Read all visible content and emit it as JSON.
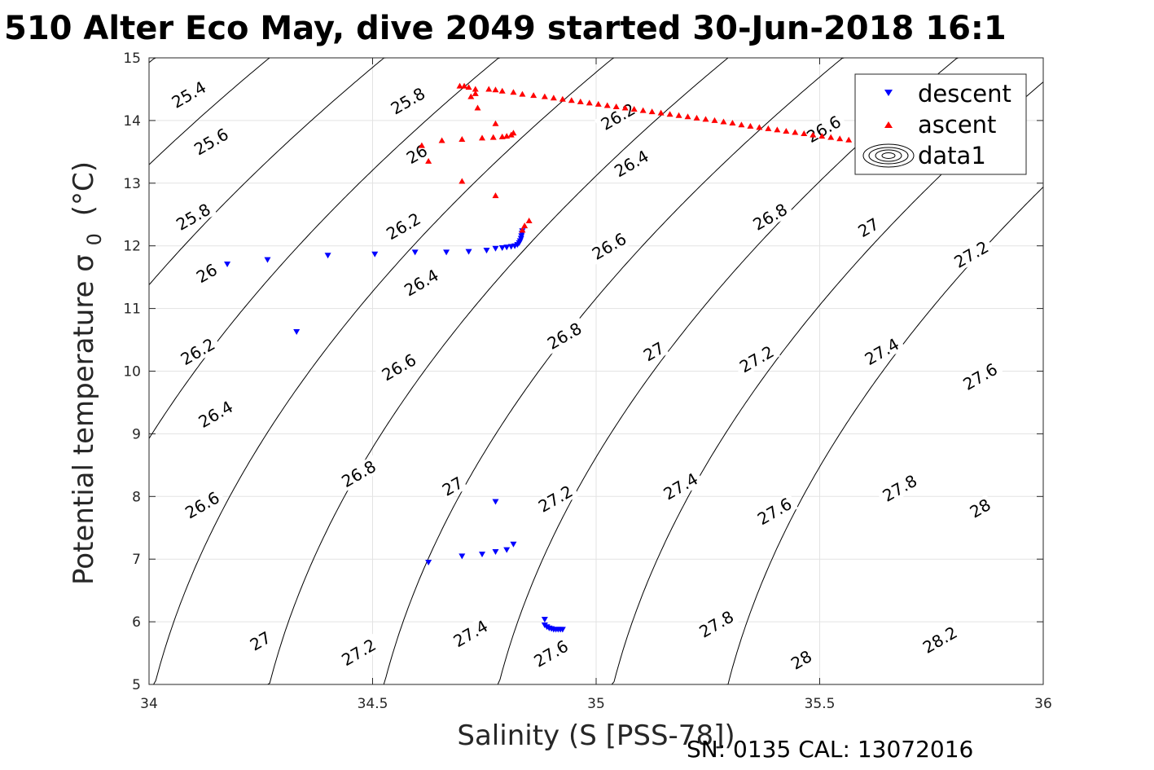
{
  "chart_data": {
    "type": "scatter",
    "title": "510 Alter Eco May, dive 2049 started 30-Jun-2018 16:1",
    "xlabel": "Salinity (S [PSS-78])",
    "ylabel_main": "Potential temperature σ",
    "ylabel_sub": "0",
    "ylabel_unit": "(°C)",
    "footer": "SN: 0135  CAL: 13072016",
    "xlim": [
      34,
      36
    ],
    "ylim": [
      5,
      15
    ],
    "x_ticks": [
      34,
      34.5,
      35,
      35.5,
      36
    ],
    "x_tick_labels": [
      "34",
      "34.5",
      "35",
      "35.5",
      "36"
    ],
    "y_ticks": [
      5,
      6,
      7,
      8,
      9,
      10,
      11,
      12,
      13,
      14,
      15
    ],
    "y_tick_labels": [
      "5",
      "6",
      "7",
      "8",
      "9",
      "10",
      "11",
      "12",
      "13",
      "14",
      "15"
    ],
    "grid": true,
    "legend_position": "top-right",
    "legend": [
      {
        "label": "descent",
        "marker": "triangle-down",
        "color": "#0000ff"
      },
      {
        "label": "ascent",
        "marker": "triangle-up",
        "color": "#ff0000"
      },
      {
        "label": "data1",
        "marker": "contour",
        "color": "#000000"
      }
    ],
    "contour_levels": [
      25.4,
      25.6,
      25.8,
      26,
      26.2,
      26.4,
      26.6,
      26.8,
      27,
      27.2,
      27.4,
      27.6,
      27.8,
      28,
      28.2
    ],
    "contour_labels": [
      {
        "text": "25.4",
        "x": 34.09,
        "y": 14.4
      },
      {
        "text": "25.6",
        "x": 34.14,
        "y": 13.65
      },
      {
        "text": "25.8",
        "x": 34.1,
        "y": 12.45
      },
      {
        "text": "26",
        "x": 34.13,
        "y": 11.55
      },
      {
        "text": "26.2",
        "x": 34.11,
        "y": 10.3
      },
      {
        "text": "26.4",
        "x": 34.15,
        "y": 9.3
      },
      {
        "text": "26.6",
        "x": 34.12,
        "y": 7.85
      },
      {
        "text": "27",
        "x": 34.25,
        "y": 5.68
      },
      {
        "text": "25.8",
        "x": 34.58,
        "y": 14.3
      },
      {
        "text": "26",
        "x": 34.6,
        "y": 13.45
      },
      {
        "text": "26.2",
        "x": 34.57,
        "y": 12.3
      },
      {
        "text": "26.4",
        "x": 34.61,
        "y": 11.4
      },
      {
        "text": "26.6",
        "x": 34.56,
        "y": 10.05
      },
      {
        "text": "26.8",
        "x": 34.47,
        "y": 8.35
      },
      {
        "text": "27",
        "x": 34.68,
        "y": 8.15
      },
      {
        "text": "27.2",
        "x": 34.47,
        "y": 5.5
      },
      {
        "text": "27.4",
        "x": 34.72,
        "y": 5.8
      },
      {
        "text": "26.2",
        "x": 35.05,
        "y": 14.05
      },
      {
        "text": "26.4",
        "x": 35.08,
        "y": 13.3
      },
      {
        "text": "26.6",
        "x": 35.03,
        "y": 11.98
      },
      {
        "text": "26.8",
        "x": 34.93,
        "y": 10.55
      },
      {
        "text": "27",
        "x": 35.13,
        "y": 10.3
      },
      {
        "text": "27.2",
        "x": 34.91,
        "y": 7.95
      },
      {
        "text": "27.4",
        "x": 35.19,
        "y": 8.15
      },
      {
        "text": "27.6",
        "x": 34.9,
        "y": 5.48
      },
      {
        "text": "27.8",
        "x": 35.27,
        "y": 5.95
      },
      {
        "text": "26.6",
        "x": 35.51,
        "y": 13.85
      },
      {
        "text": "26.8",
        "x": 35.39,
        "y": 12.45
      },
      {
        "text": "27",
        "x": 35.61,
        "y": 12.28
      },
      {
        "text": "27.2",
        "x": 35.36,
        "y": 10.18
      },
      {
        "text": "27.4",
        "x": 35.64,
        "y": 10.3
      },
      {
        "text": "27.6",
        "x": 35.4,
        "y": 7.75
      },
      {
        "text": "27.8",
        "x": 35.68,
        "y": 8.12
      },
      {
        "text": "28",
        "x": 35.46,
        "y": 5.38
      },
      {
        "text": "27.2",
        "x": 35.84,
        "y": 11.85
      },
      {
        "text": "27.6",
        "x": 35.86,
        "y": 9.9
      },
      {
        "text": "28",
        "x": 35.86,
        "y": 7.8
      },
      {
        "text": "28.2",
        "x": 35.77,
        "y": 5.7
      }
    ],
    "series": [
      {
        "name": "descent",
        "marker": "triangle-down",
        "color": "#0000ff",
        "points": [
          [
            34.175,
            11.71
          ],
          [
            34.265,
            11.78
          ],
          [
            34.4,
            11.85
          ],
          [
            34.505,
            11.87
          ],
          [
            34.595,
            11.9
          ],
          [
            34.665,
            11.9
          ],
          [
            34.715,
            11.91
          ],
          [
            34.755,
            11.93
          ],
          [
            34.775,
            11.96
          ],
          [
            34.79,
            11.97
          ],
          [
            34.8,
            11.98
          ],
          [
            34.81,
            11.99
          ],
          [
            34.818,
            12.0
          ],
          [
            34.824,
            12.02
          ],
          [
            34.828,
            12.05
          ],
          [
            34.83,
            12.08
          ],
          [
            34.832,
            12.12
          ],
          [
            34.833,
            12.16
          ],
          [
            34.834,
            12.2
          ],
          [
            34.835,
            12.24
          ],
          [
            34.33,
            10.63
          ],
          [
            34.625,
            6.95
          ],
          [
            34.7,
            7.05
          ],
          [
            34.745,
            7.08
          ],
          [
            34.775,
            7.12
          ],
          [
            34.8,
            7.15
          ],
          [
            34.815,
            7.24
          ],
          [
            34.775,
            7.92
          ],
          [
            34.885,
            6.04
          ],
          [
            34.885,
            5.95
          ],
          [
            34.89,
            5.92
          ],
          [
            34.895,
            5.9
          ],
          [
            34.9,
            5.89
          ],
          [
            34.905,
            5.88
          ],
          [
            34.91,
            5.88
          ],
          [
            34.915,
            5.88
          ],
          [
            34.92,
            5.88
          ],
          [
            34.925,
            5.88
          ]
        ]
      },
      {
        "name": "ascent",
        "marker": "triangle-up",
        "color": "#ff0000",
        "points": [
          [
            34.835,
            12.25
          ],
          [
            34.84,
            12.32
          ],
          [
            34.85,
            12.4
          ],
          [
            34.695,
            14.55
          ],
          [
            34.705,
            14.55
          ],
          [
            34.715,
            14.53
          ],
          [
            34.73,
            14.5
          ],
          [
            34.76,
            14.5
          ],
          [
            34.775,
            14.49
          ],
          [
            34.79,
            14.47
          ],
          [
            34.72,
            14.38
          ],
          [
            34.73,
            14.43
          ],
          [
            34.735,
            14.2
          ],
          [
            34.815,
            14.45
          ],
          [
            34.835,
            14.42
          ],
          [
            34.86,
            14.4
          ],
          [
            34.885,
            14.38
          ],
          [
            34.905,
            14.36
          ],
          [
            34.925,
            14.34
          ],
          [
            34.945,
            14.32
          ],
          [
            34.965,
            14.3
          ],
          [
            34.985,
            14.28
          ],
          [
            35.005,
            14.26
          ],
          [
            35.025,
            14.24
          ],
          [
            35.045,
            14.22
          ],
          [
            35.065,
            14.2
          ],
          [
            35.085,
            14.18
          ],
          [
            35.105,
            14.16
          ],
          [
            35.125,
            14.14
          ],
          [
            35.145,
            14.12
          ],
          [
            35.165,
            14.1
          ],
          [
            35.185,
            14.08
          ],
          [
            35.205,
            14.06
          ],
          [
            35.225,
            14.04
          ],
          [
            35.245,
            14.02
          ],
          [
            35.265,
            14.0
          ],
          [
            35.285,
            13.98
          ],
          [
            35.305,
            13.96
          ],
          [
            35.325,
            13.93
          ],
          [
            35.345,
            13.91
          ],
          [
            35.365,
            13.89
          ],
          [
            35.385,
            13.87
          ],
          [
            35.405,
            13.85
          ],
          [
            35.425,
            13.83
          ],
          [
            35.445,
            13.81
          ],
          [
            35.465,
            13.79
          ],
          [
            35.485,
            13.77
          ],
          [
            35.505,
            13.75
          ],
          [
            35.525,
            13.73
          ],
          [
            35.545,
            13.71
          ],
          [
            35.565,
            13.69
          ],
          [
            35.585,
            13.67
          ],
          [
            35.605,
            13.65
          ],
          [
            35.625,
            13.63
          ],
          [
            35.645,
            13.61
          ],
          [
            35.665,
            13.6
          ],
          [
            34.61,
            13.6
          ],
          [
            34.625,
            13.35
          ],
          [
            34.655,
            13.68
          ],
          [
            34.7,
            13.7
          ],
          [
            34.745,
            13.72
          ],
          [
            34.77,
            13.73
          ],
          [
            34.79,
            13.74
          ],
          [
            34.8,
            13.75
          ],
          [
            34.81,
            13.77
          ],
          [
            34.815,
            13.8
          ],
          [
            34.775,
            13.95
          ],
          [
            34.7,
            13.03
          ],
          [
            34.775,
            12.8
          ]
        ]
      }
    ]
  }
}
